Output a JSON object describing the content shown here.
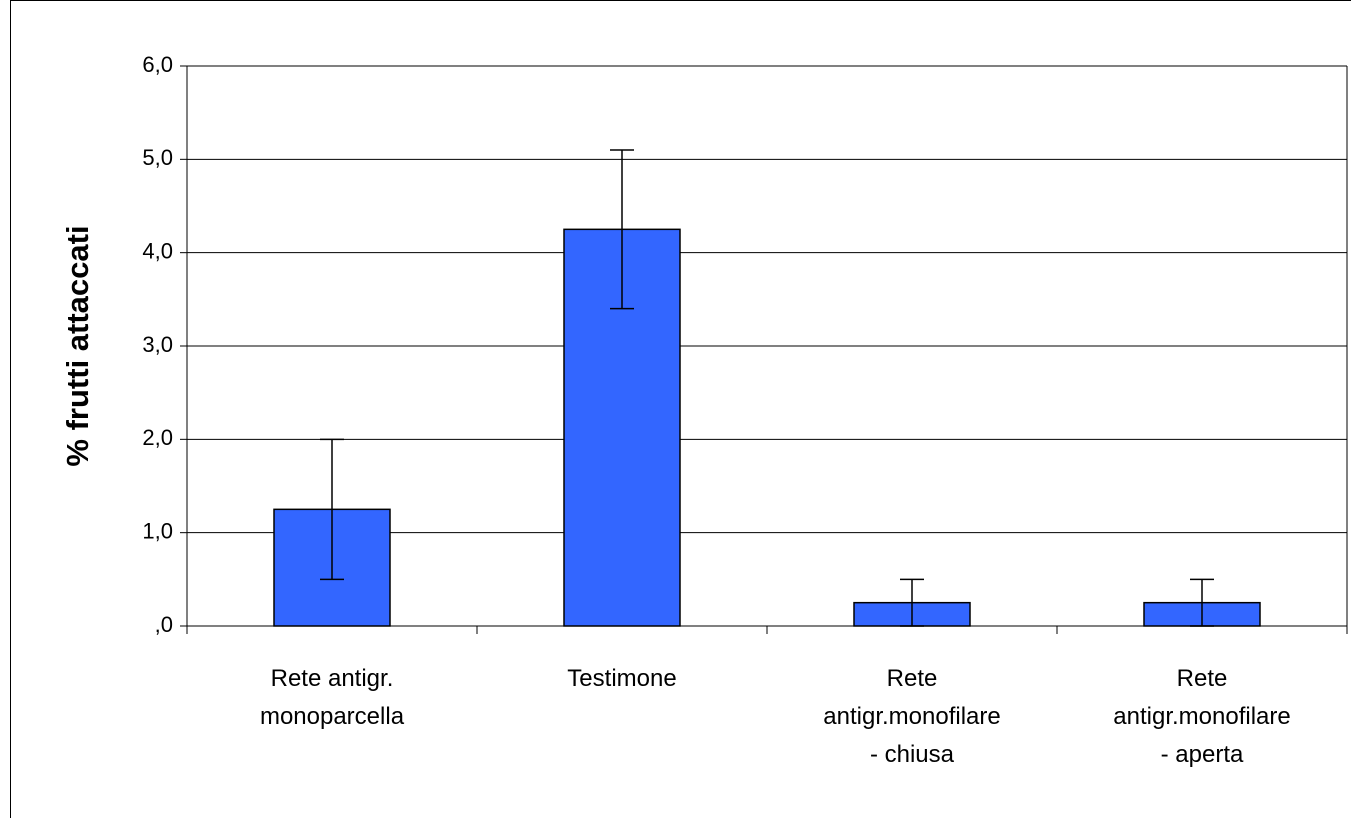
{
  "chart_data": {
    "type": "bar",
    "y_label": "% frutti attaccati",
    "categories": [
      "Rete antigr.\nmonoparcella",
      "Testimone",
      "Rete\nantigr.monofilare\n- chiusa",
      "Rete\nantigr.monofilare\n- aperta"
    ],
    "values": [
      1.25,
      4.25,
      0.25,
      0.25
    ],
    "errors": [
      0.75,
      0.85,
      0.25,
      0.25
    ],
    "color": "#3366ff",
    "ylim": [
      0,
      6
    ],
    "yticks": [
      {
        "value": 0,
        "label": ",0"
      },
      {
        "value": 1,
        "label": "1,0"
      },
      {
        "value": 2,
        "label": "2,0"
      },
      {
        "value": 3,
        "label": "3,0"
      },
      {
        "value": 4,
        "label": "4,0"
      },
      {
        "value": 5,
        "label": "5,0"
      },
      {
        "value": 6,
        "label": "6,0"
      }
    ],
    "grid": true
  }
}
